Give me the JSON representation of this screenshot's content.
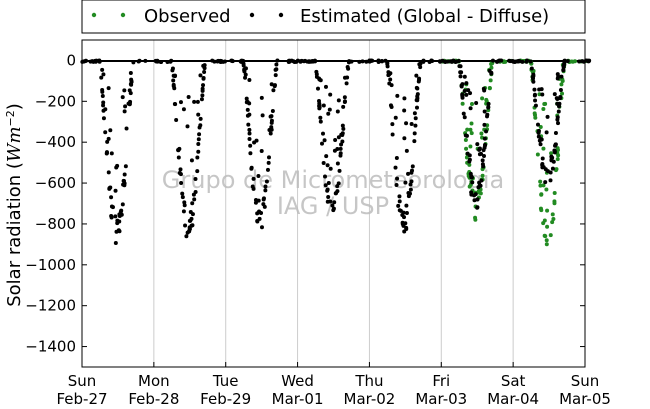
{
  "chart_data": {
    "type": "scatter",
    "title": "",
    "xlabel": "",
    "ylabel_text": "Solar radiation (",
    "ylabel_unit_main": "Wm",
    "ylabel_unit_exp": "−2",
    "ylabel_close": ")",
    "xlim": [
      0,
      7
    ],
    "ylim": [
      -1500,
      100
    ],
    "yticks": [
      0,
      -200,
      -400,
      -600,
      -800,
      -1000,
      -1200,
      -1400
    ],
    "ytick_labels": [
      "0",
      "−200",
      "−400",
      "−600",
      "−800",
      "−1000",
      "−1200",
      "−1400"
    ],
    "xticks": [
      0,
      1,
      2,
      3,
      4,
      5,
      6,
      7
    ],
    "xtick_days": [
      "Sun",
      "Mon",
      "Tue",
      "Wed",
      "Thu",
      "Fri",
      "Sat",
      "Sun"
    ],
    "xtick_dates": [
      "Feb-27",
      "Feb-28",
      "Feb-29",
      "Mar-01",
      "Mar-02",
      "Mar-03",
      "Mar-04",
      "Mar-05"
    ],
    "grid": "vertical",
    "legend_position": "top-outside",
    "watermark_lines": [
      "Grupo de Micrometeorologia",
      "IAG / USP"
    ],
    "series": [
      {
        "name": "Estimated (Global - Diffuse)",
        "color": "#000000",
        "day_peaks": [
          -900,
          -890,
          -860,
          -790,
          -860,
          -730,
          -620
        ],
        "observed_days": []
      },
      {
        "name": "Observed",
        "color": "#228B22",
        "day_peaks": [
          0,
          0,
          0,
          0,
          0,
          -790,
          -950
        ],
        "observed_days": [
          5,
          6
        ]
      }
    ]
  }
}
